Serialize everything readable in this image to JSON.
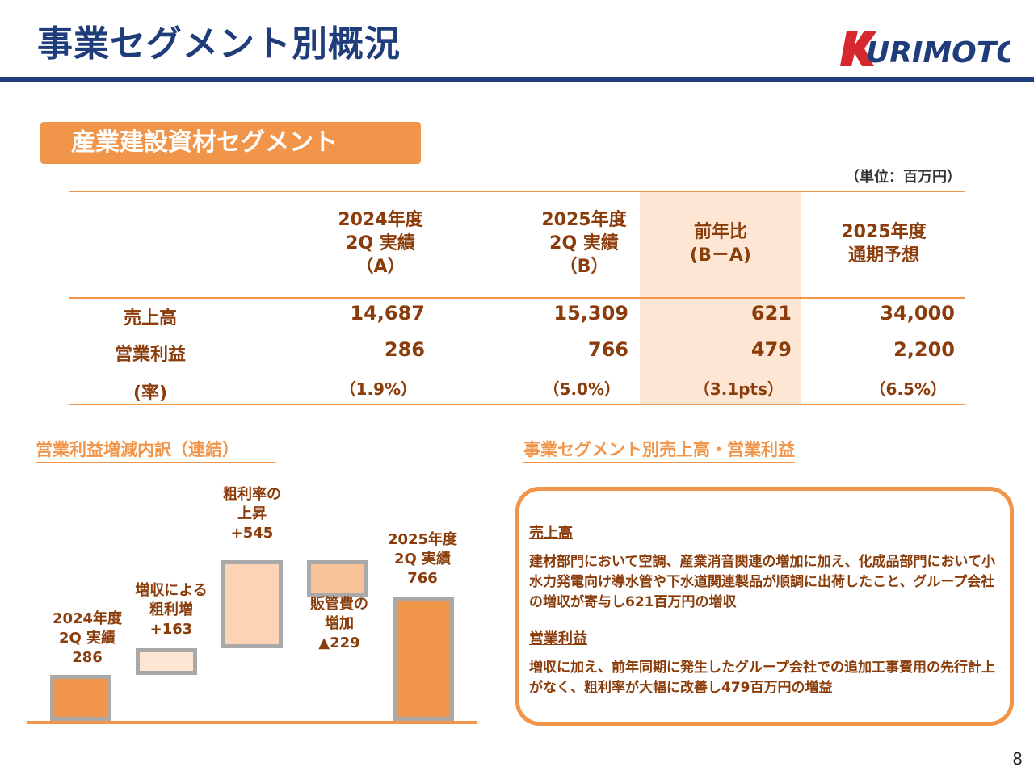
{
  "header": {
    "title": "事業セグメント別概況",
    "logo_text": "KURIMOTO",
    "colors": {
      "navy": "#1f3d7a",
      "orange": "#f0954a",
      "brown_text": "#8a3c0a",
      "logo_red": "#d7282f"
    }
  },
  "segment": {
    "badge": "産業建設資材セグメント",
    "unit_note": "（単位：百万円）"
  },
  "table": {
    "columns": [
      "2024年度\n2Q 実績\n（A）",
      "2025年度\n2Q 実績\n（B）",
      "前年比\n(B－A)",
      "2025年度\n通期予想"
    ],
    "rows": [
      {
        "label": "売上高",
        "values": [
          "14,687",
          "15,309",
          "621",
          "34,000"
        ]
      },
      {
        "label": "営業利益",
        "values": [
          "286",
          "766",
          "479",
          "2,200"
        ]
      },
      {
        "label": "(率)",
        "values": [
          "（1.9%）",
          "（5.0%）",
          "（3.1pts）",
          "（6.5%）"
        ]
      }
    ]
  },
  "waterfall": {
    "heading": "営業利益増減内訳（連結）",
    "items": [
      {
        "label": "2024年度\n2Q 実績\n286",
        "value": 286,
        "kind": "total"
      },
      {
        "label": "増収による\n粗利増\n+163",
        "value": 163,
        "kind": "increase"
      },
      {
        "label": "粗利率の\n上昇\n+545",
        "value": 545,
        "kind": "increase"
      },
      {
        "label": "販管費の\n増加\n▲229",
        "value": -229,
        "kind": "decrease"
      },
      {
        "label": "2025年度\n2Q 実績\n766",
        "value": 766,
        "kind": "total"
      }
    ]
  },
  "commentary": {
    "heading": "事業セグメント別売上高・営業利益",
    "sales_title": "売上高",
    "sales_body": "建材部門において空調、産業消音関連の増加に加え、化成品部門において小水力発電向け導水管や下水道関連製品が順調に出荷したこと、グループ会社の増収が寄与し621百万円の増収",
    "profit_title": "営業利益",
    "profit_body": "増収に加え、前年同期に発生したグループ会社での追加工事費用の先行計上がなく、粗利率が大幅に改善し479百万円の増益"
  },
  "footer": {
    "page_number": "8"
  }
}
